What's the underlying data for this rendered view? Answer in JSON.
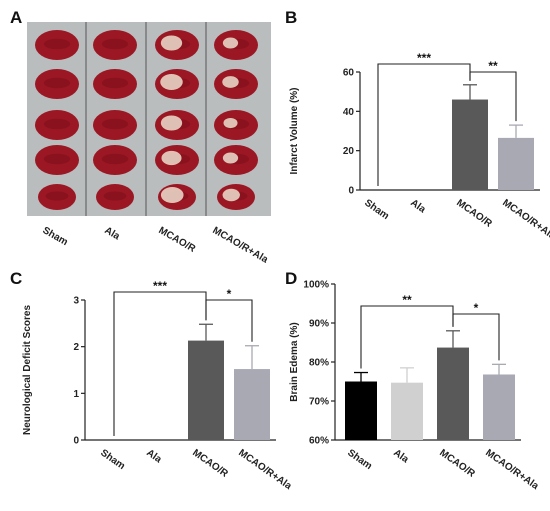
{
  "panels": [
    {
      "letter": "A"
    },
    {
      "letter": "B"
    },
    {
      "letter": "C"
    },
    {
      "letter": "D"
    }
  ],
  "photo": {
    "group_labels": [
      "Sham",
      "Ala",
      "MCAO/R",
      "MCAO/R+Ala"
    ],
    "slice_colors": {
      "healthy": "#9c1724",
      "infarct": "#e8d4c4",
      "background": "#b9bdbe"
    }
  },
  "chart_data": [
    {
      "panel": "B",
      "type": "bar",
      "categories": [
        "Sham",
        "Ala",
        "MCAO/R",
        "MCAO/R+Ala"
      ],
      "values": [
        0,
        0,
        46,
        26.5
      ],
      "errors": [
        0,
        0,
        7.5,
        6.5
      ],
      "colors": [
        "#000000",
        "#d0d0d0",
        "#595959",
        "#a9a9b3"
      ],
      "ylabel": "Infarct  Volume (%)",
      "ylim": [
        0,
        60
      ],
      "yticks": [
        0,
        20,
        40,
        60
      ],
      "significance": [
        {
          "from": 0,
          "to": 2,
          "label": "***"
        },
        {
          "from": 2,
          "to": 3,
          "label": "**"
        }
      ]
    },
    {
      "panel": "C",
      "type": "bar",
      "categories": [
        "Sham",
        "Ala",
        "MCAO/R",
        "MCAO/R+Ala"
      ],
      "values": [
        0,
        0,
        2.13,
        1.52
      ],
      "errors": [
        0,
        0,
        0.35,
        0.5
      ],
      "colors": [
        "#000000",
        "#d0d0d0",
        "#595959",
        "#a9a9b3"
      ],
      "ylabel": "Neurological Deficit Scores",
      "ylim": [
        0,
        3
      ],
      "yticks": [
        0,
        1,
        2,
        3
      ],
      "significance": [
        {
          "from": 0,
          "to": 2,
          "label": "***"
        },
        {
          "from": 2,
          "to": 3,
          "label": "*"
        }
      ]
    },
    {
      "panel": "D",
      "type": "bar",
      "categories": [
        "Sham",
        "Ala",
        "MCAO/R",
        "MCAO/R+Ala"
      ],
      "values": [
        75,
        74.7,
        83.7,
        76.8
      ],
      "errors": [
        2.3,
        3.8,
        4.3,
        2.6
      ],
      "colors": [
        "#000000",
        "#d0d0d0",
        "#595959",
        "#a9a9b3"
      ],
      "ylabel": "Brain Edema (%)",
      "ylim": [
        60,
        100
      ],
      "yticks": [
        60,
        70,
        80,
        90,
        100
      ],
      "ytick_suffix": "%",
      "significance": [
        {
          "from": 0,
          "to": 2,
          "label": "**"
        },
        {
          "from": 2,
          "to": 3,
          "label": "*"
        }
      ]
    }
  ]
}
